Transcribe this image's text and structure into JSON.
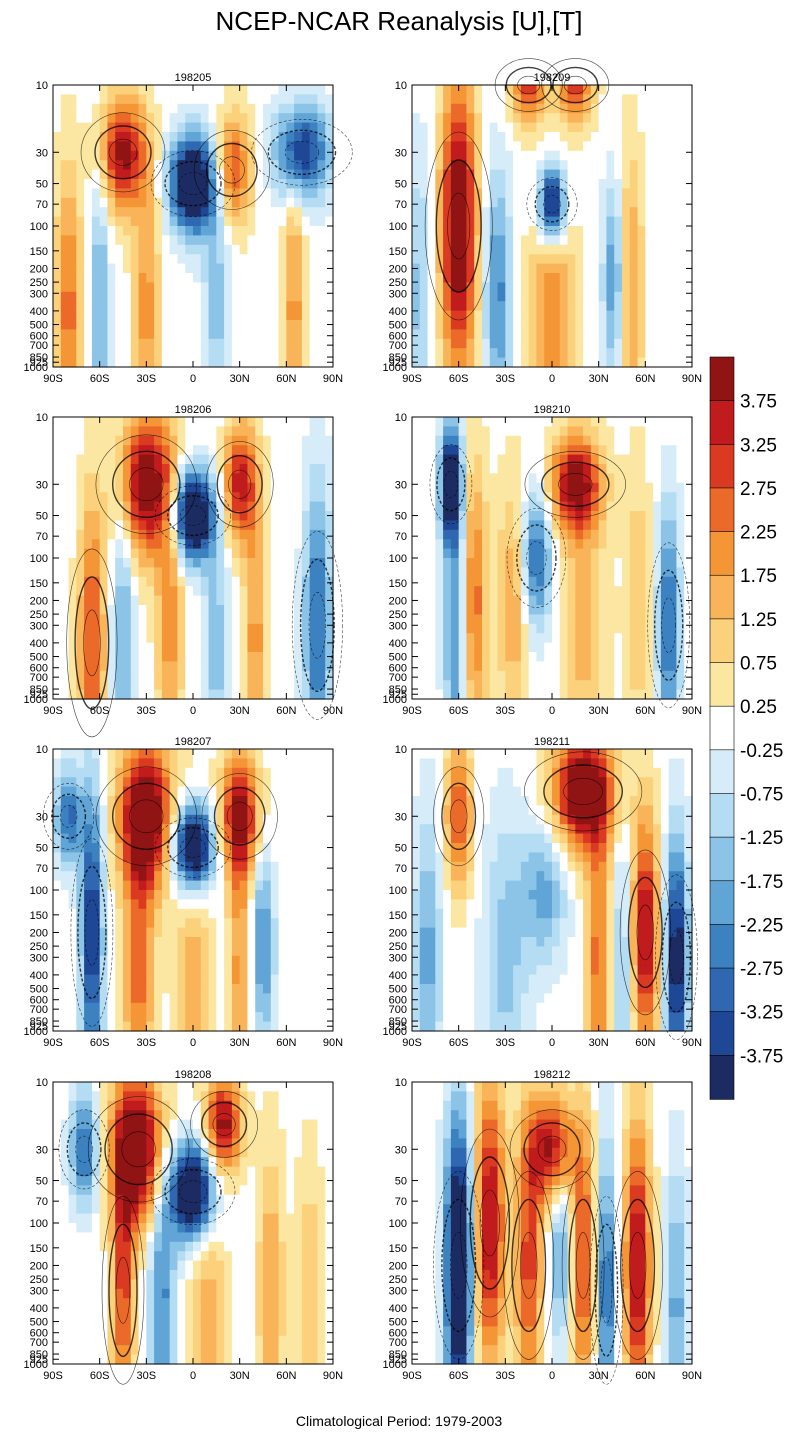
{
  "title": "NCEP-NCAR Reanalysis [U],[T]",
  "footer": "Climatological Period: 1979-2003",
  "colors": {
    "scale": [
      "#1c2b62",
      "#1e4796",
      "#2f68b0",
      "#3d82c0",
      "#60a5d6",
      "#8cc4e8",
      "#b4dcf3",
      "#d6ecf8",
      "#ffffff",
      "#fbe7a1",
      "#fbd17c",
      "#f9b45a",
      "#f49636",
      "#eb6a2a",
      "#d93a21",
      "#c01b1d",
      "#911414"
    ],
    "contour": "#000000",
    "frame": "#000000"
  },
  "chart_data": {
    "type": "heatmap",
    "description_variable": "zonal-mean anomaly panels with contour overlays",
    "ylabel_ticks": [
      "10",
      "30",
      "50",
      "70",
      "100",
      "150",
      "200",
      "250",
      "300",
      "400",
      "500",
      "600",
      "700",
      "850",
      "925",
      "1000"
    ],
    "xlabel_ticks": [
      "90S",
      "60S",
      "30S",
      "0",
      "30N",
      "60N",
      "90N"
    ],
    "colorbar": {
      "levels": [
        -4.25,
        -3.75,
        -3.25,
        -2.75,
        -2.25,
        -1.75,
        -1.25,
        -0.75,
        -0.25,
        0.25,
        0.75,
        1.25,
        1.75,
        2.25,
        2.75,
        3.25,
        3.75,
        4.25
      ],
      "labels": [
        "3.75",
        "3.25",
        "2.75",
        "2.25",
        "1.75",
        "1.25",
        "0.75",
        "0.25",
        "-0.25",
        "-0.75",
        "-1.25",
        "-1.75",
        "-2.25",
        "-2.75",
        "-3.25",
        "-3.75"
      ]
    },
    "panels": [
      {
        "title": "198205",
        "blobs": [
          {
            "lat": 0,
            "p": 50,
            "amp": -6,
            "sx": 10,
            "sp": 1.0
          },
          {
            "lat": -45,
            "p": 30,
            "amp": 4,
            "sx": 10,
            "sp": 1.2
          },
          {
            "lat": 25,
            "p": 40,
            "amp": 3,
            "sx": 9,
            "sp": 1.2
          },
          {
            "lat": -80,
            "p": 400,
            "amp": 2.5,
            "sx": 6,
            "sp": 3
          },
          {
            "lat": -60,
            "p": 400,
            "amp": -2,
            "sx": 4,
            "sp": 3
          },
          {
            "lat": -30,
            "p": 400,
            "amp": 2,
            "sx": 6,
            "sp": 3
          },
          {
            "lat": 15,
            "p": 300,
            "amp": -1.5,
            "sx": 6,
            "sp": 3
          },
          {
            "lat": 70,
            "p": 30,
            "amp": -4,
            "sx": 12,
            "sp": 1.0
          },
          {
            "lat": 65,
            "p": 400,
            "amp": 2,
            "sx": 5,
            "sp": 3
          }
        ]
      },
      {
        "title": "198209",
        "blobs": [
          {
            "lat": 0,
            "p": 70,
            "amp": -5,
            "sx": 6,
            "sp": 0.8
          },
          {
            "lat": -60,
            "p": 100,
            "amp": 5,
            "sx": 8,
            "sp": 3
          },
          {
            "lat": -35,
            "p": 300,
            "amp": -2.5,
            "sx": 6,
            "sp": 2.5
          },
          {
            "lat": 0,
            "p": 400,
            "amp": 2.2,
            "sx": 10,
            "sp": 2.5
          },
          {
            "lat": -15,
            "p": 10,
            "amp": 3,
            "sx": 8,
            "sp": 0.8
          },
          {
            "lat": 15,
            "p": 10,
            "amp": 3,
            "sx": 8,
            "sp": 0.8
          },
          {
            "lat": 40,
            "p": 250,
            "amp": -2.5,
            "sx": 5,
            "sp": 2
          },
          {
            "lat": 50,
            "p": 300,
            "amp": 2,
            "sx": 6,
            "sp": 3
          },
          {
            "lat": -85,
            "p": 300,
            "amp": -1.5,
            "sx": 5,
            "sp": 3
          }
        ]
      },
      {
        "title": "198206",
        "blobs": [
          {
            "lat": 0,
            "p": 50,
            "amp": -6,
            "sx": 9,
            "sp": 0.9
          },
          {
            "lat": -30,
            "p": 30,
            "amp": 4.5,
            "sx": 12,
            "sp": 1.5
          },
          {
            "lat": 30,
            "p": 30,
            "amp": 3.5,
            "sx": 8,
            "sp": 1.3
          },
          {
            "lat": -65,
            "p": 400,
            "amp": 3,
            "sx": 6,
            "sp": 3
          },
          {
            "lat": -45,
            "p": 400,
            "amp": -2,
            "sx": 5,
            "sp": 3
          },
          {
            "lat": -15,
            "p": 300,
            "amp": 2,
            "sx": 6,
            "sp": 3
          },
          {
            "lat": 15,
            "p": 400,
            "amp": -1.5,
            "sx": 6,
            "sp": 3
          },
          {
            "lat": 40,
            "p": 400,
            "amp": 2,
            "sx": 5,
            "sp": 3
          },
          {
            "lat": 80,
            "p": 300,
            "amp": -3,
            "sx": 6,
            "sp": 3
          }
        ]
      },
      {
        "title": "198210",
        "blobs": [
          {
            "lat": -65,
            "p": 30,
            "amp": -5,
            "sx": 5,
            "sp": 1.2
          },
          {
            "lat": -50,
            "p": 200,
            "amp": 2.5,
            "sx": 6,
            "sp": 3
          },
          {
            "lat": -62,
            "p": 400,
            "amp": -2.5,
            "sx": 5,
            "sp": 3
          },
          {
            "lat": -10,
            "p": 100,
            "amp": -3,
            "sx": 7,
            "sp": 1.5
          },
          {
            "lat": 15,
            "p": 30,
            "amp": 4,
            "sx": 12,
            "sp": 1.0
          },
          {
            "lat": -25,
            "p": 200,
            "amp": 1.8,
            "sx": 7,
            "sp": 2.5
          },
          {
            "lat": 20,
            "p": 300,
            "amp": 1.5,
            "sx": 10,
            "sp": 3
          },
          {
            "lat": 75,
            "p": 300,
            "amp": -3,
            "sx": 5,
            "sp": 2.5
          },
          {
            "lat": 55,
            "p": 200,
            "amp": 1.2,
            "sx": 6,
            "sp": 3
          }
        ]
      },
      {
        "title": "198207",
        "blobs": [
          {
            "lat": 0,
            "p": 50,
            "amp": -6,
            "sx": 9,
            "sp": 0.9
          },
          {
            "lat": -30,
            "p": 30,
            "amp": 5,
            "sx": 12,
            "sp": 1.5
          },
          {
            "lat": 30,
            "p": 30,
            "amp": 4,
            "sx": 9,
            "sp": 1.3
          },
          {
            "lat": -65,
            "p": 200,
            "amp": -4,
            "sx": 5,
            "sp": 3
          },
          {
            "lat": -80,
            "p": 30,
            "amp": -3,
            "sx": 6,
            "sp": 1.0
          },
          {
            "lat": -35,
            "p": 400,
            "amp": 2.5,
            "sx": 7,
            "sp": 3
          },
          {
            "lat": 0,
            "p": 400,
            "amp": 1.5,
            "sx": 8,
            "sp": 3
          },
          {
            "lat": 45,
            "p": 250,
            "amp": -2.5,
            "sx": 5,
            "sp": 2
          },
          {
            "lat": 30,
            "p": 400,
            "amp": 2,
            "sx": 5,
            "sp": 3
          }
        ]
      },
      {
        "title": "198211",
        "blobs": [
          {
            "lat": -5,
            "p": 100,
            "amp": -2,
            "sx": 10,
            "sp": 1.5
          },
          {
            "lat": 20,
            "p": 20,
            "amp": 5,
            "sx": 14,
            "sp": 1.2
          },
          {
            "lat": -60,
            "p": 30,
            "amp": 3,
            "sx": 6,
            "sp": 1.5
          },
          {
            "lat": -80,
            "p": 300,
            "amp": -2,
            "sx": 6,
            "sp": 3
          },
          {
            "lat": -30,
            "p": 300,
            "amp": -1.5,
            "sx": 10,
            "sp": 3
          },
          {
            "lat": 30,
            "p": 300,
            "amp": 2.5,
            "sx": 6,
            "sp": 3
          },
          {
            "lat": 45,
            "p": 400,
            "amp": -1.5,
            "sx": 5,
            "sp": 3
          },
          {
            "lat": 60,
            "p": 200,
            "amp": 4,
            "sx": 6,
            "sp": 2.5
          },
          {
            "lat": 80,
            "p": 300,
            "amp": -4.5,
            "sx": 5,
            "sp": 2.5
          }
        ]
      },
      {
        "title": "198208",
        "blobs": [
          {
            "lat": 0,
            "p": 60,
            "amp": -6,
            "sx": 10,
            "sp": 1.0
          },
          {
            "lat": -35,
            "p": 30,
            "amp": 5,
            "sx": 12,
            "sp": 1.6
          },
          {
            "lat": 20,
            "p": 20,
            "amp": 4,
            "sx": 8,
            "sp": 1.0
          },
          {
            "lat": -70,
            "p": 30,
            "amp": -3,
            "sx": 6,
            "sp": 1.2
          },
          {
            "lat": -45,
            "p": 300,
            "amp": 3,
            "sx": 5,
            "sp": 3
          },
          {
            "lat": -20,
            "p": 300,
            "amp": -2.5,
            "sx": 6,
            "sp": 3
          },
          {
            "lat": 10,
            "p": 400,
            "amp": 1.5,
            "sx": 8,
            "sp": 3
          },
          {
            "lat": 50,
            "p": 300,
            "amp": 1.8,
            "sx": 6,
            "sp": 3
          },
          {
            "lat": 75,
            "p": 300,
            "amp": 1.2,
            "sx": 6,
            "sp": 3
          }
        ]
      },
      {
        "title": "198212",
        "blobs": [
          {
            "lat": -60,
            "p": 200,
            "amp": -6,
            "sx": 6,
            "sp": 3
          },
          {
            "lat": -40,
            "p": 100,
            "amp": 4,
            "sx": 7,
            "sp": 3
          },
          {
            "lat": -15,
            "p": 200,
            "amp": 3,
            "sx": 6,
            "sp": 3
          },
          {
            "lat": 0,
            "p": 30,
            "amp": 4,
            "sx": 10,
            "sp": 1.2
          },
          {
            "lat": 5,
            "p": 150,
            "amp": -2,
            "sx": 5,
            "sp": 2
          },
          {
            "lat": 20,
            "p": 200,
            "amp": 3,
            "sx": 5,
            "sp": 3
          },
          {
            "lat": 35,
            "p": 300,
            "amp": -3,
            "sx": 4,
            "sp": 3
          },
          {
            "lat": 55,
            "p": 200,
            "amp": 4,
            "sx": 6,
            "sp": 3
          },
          {
            "lat": 80,
            "p": 400,
            "amp": -2,
            "sx": 5,
            "sp": 3
          }
        ]
      }
    ]
  }
}
